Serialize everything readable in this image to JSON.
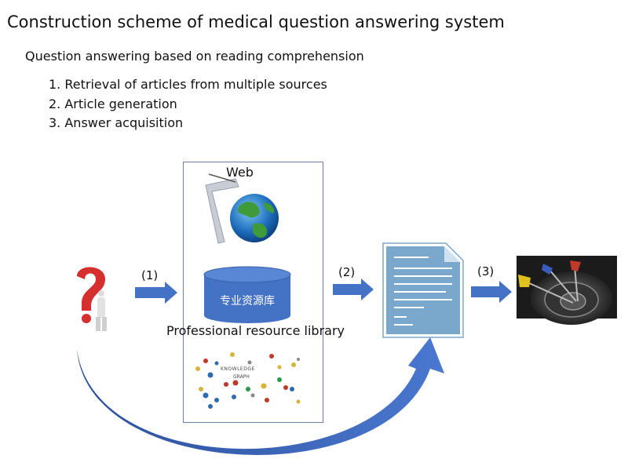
{
  "title": "Construction scheme of medical question answering system",
  "subtitle": "Question answering based on reading comprehension",
  "steps": [
    "1. Retrieval of articles from multiple sources",
    "2. Article generation",
    "3. Answer acquisition"
  ],
  "diagram": {
    "web_label": "Web",
    "database_label": "专业资源库",
    "library_label": "Professional resource library",
    "arrow_labels": [
      "(1)",
      "(2)",
      "(3)"
    ],
    "knowledge_graph_title": "KNOWLEDGE",
    "knowledge_graph_subtitle": "GRAPH"
  },
  "colors": {
    "arrow_blue": "#4472c4",
    "database_blue": "#4472c4",
    "document_blue": "#7aa7cc",
    "question_red": "#d62f2f"
  }
}
